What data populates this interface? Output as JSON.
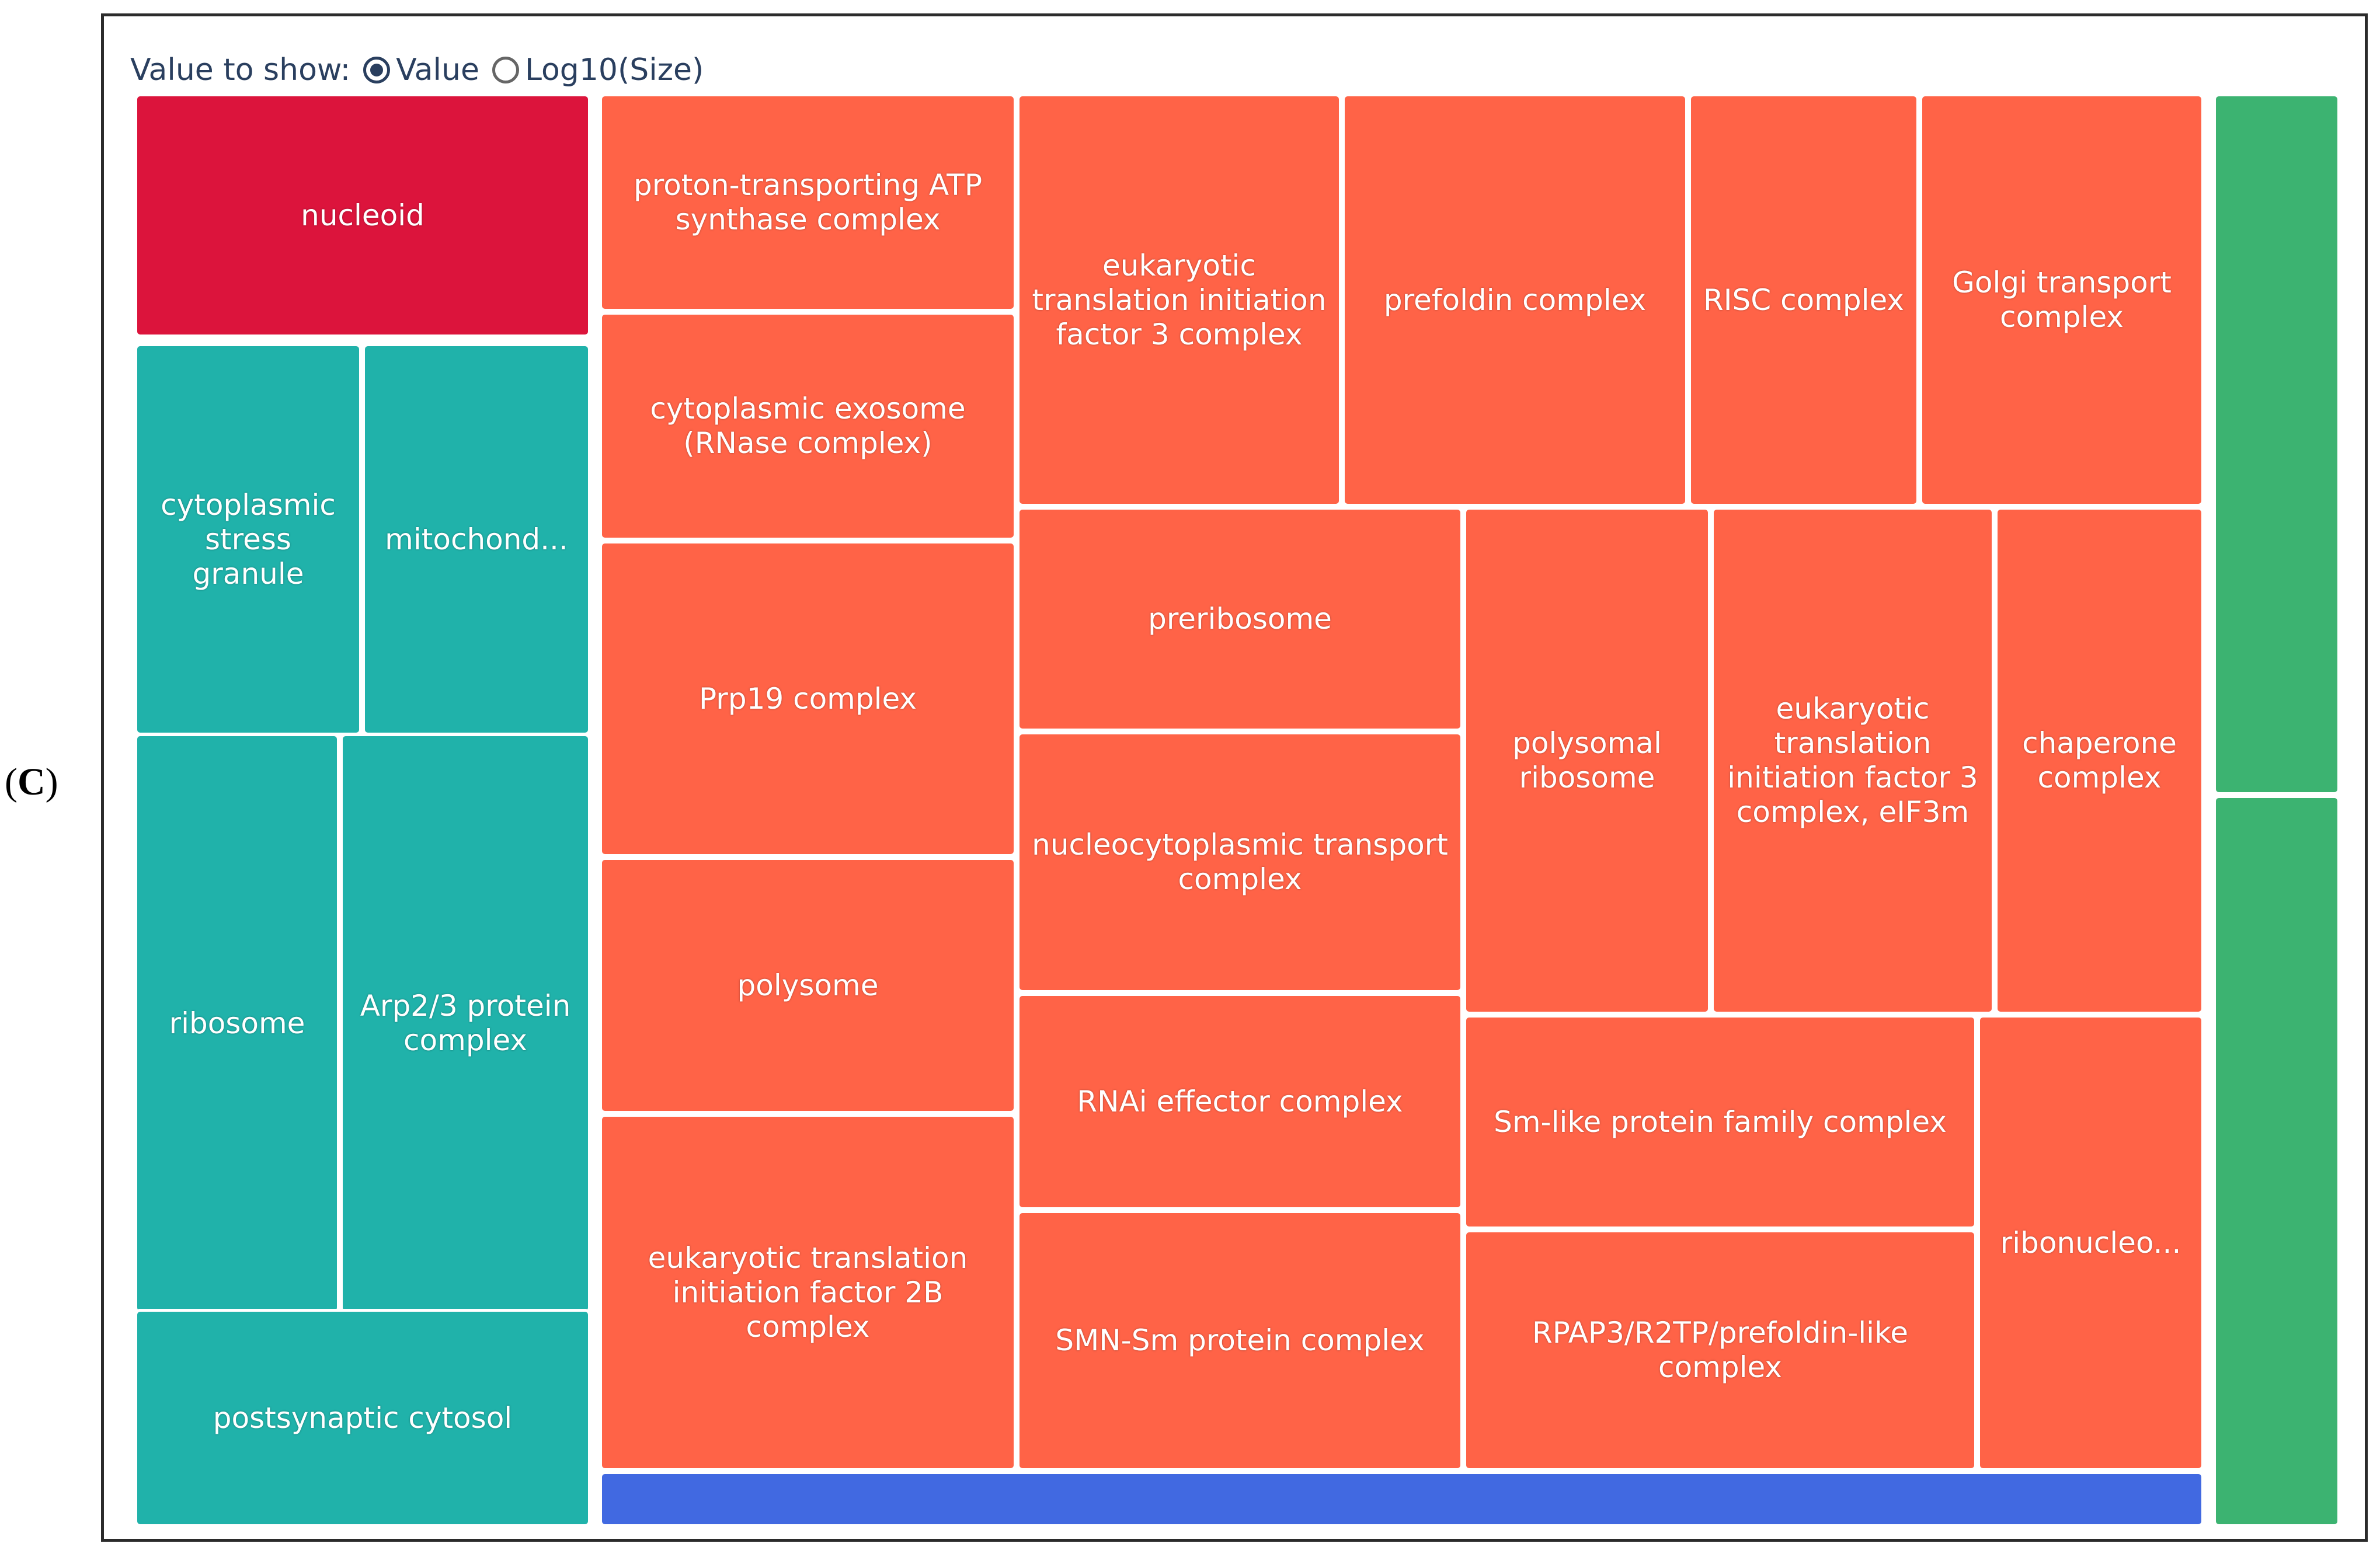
{
  "figure_label": "C",
  "controls": {
    "prompt": "Value to show:",
    "option_value": "Value",
    "option_log": "Log10(Size)",
    "selected": "Value"
  },
  "colors": {
    "crimson": "#dc143c",
    "teal": "#20b2aa",
    "tomato": "#ff6347",
    "blue": "#4169e1",
    "green": "#3cb371"
  },
  "tiles": {
    "nucleoid": "nucleoid",
    "cytoplasmic_stress_granule": "cytoplasmic stress granule",
    "mitochond": "mitochond...",
    "ribosome": "ribosome",
    "arp23": "Arp2/3 protein complex",
    "postsynaptic_cytosol": "postsynaptic cytosol",
    "proton_atp": "proton-transporting ATP synthase complex",
    "cytoplasmic_exosome": "cytoplasmic exosome (RNase complex)",
    "prp19": "Prp19 complex",
    "polysome": "polysome",
    "eif2b": "eukaryotic translation initiation factor 2B complex",
    "eif3": "eukaryotic translation initiation factor 3 complex",
    "prefoldin": "prefoldin complex",
    "risc": "RISC complex",
    "golgi_transport": "Golgi transport complex",
    "preribosome": "preribosome",
    "nucleocytoplasmic": "nucleocytoplasmic transport complex",
    "polysomal_ribosome": "polysomal ribosome",
    "eif3m": "eukaryotic translation initiation factor 3 complex, eIF3m",
    "chaperone": "chaperone complex",
    "rnai_effector": "RNAi effector complex",
    "sm_like": "Sm-like protein family complex",
    "ribonucleo": "ribonucleo...",
    "smn_sm": "SMN-Sm protein complex",
    "rpap3": "RPAP3/R2TP/prefoldin-like complex"
  }
}
